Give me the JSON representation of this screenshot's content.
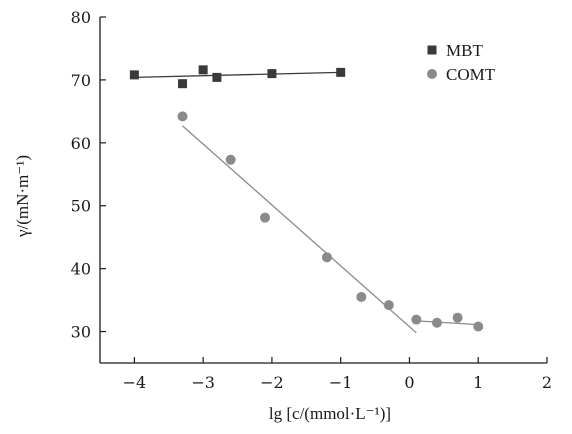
{
  "chart_data": {
    "type": "scatter",
    "xlabel": "lg [c/(mmol·L⁻¹)]",
    "ylabel": "γ/(mN·m⁻¹)",
    "xlim": [
      -4.5,
      2
    ],
    "ylim": [
      25,
      80
    ],
    "x_ticks": [
      -4,
      -3,
      -2,
      -1,
      0,
      1,
      2
    ],
    "x_tick_labels": [
      "−4",
      "−3",
      "−2",
      "−1",
      "0",
      "1",
      "2"
    ],
    "y_ticks": [
      30,
      40,
      50,
      60,
      70,
      80
    ],
    "y_tick_labels": [
      "30",
      "40",
      "50",
      "60",
      "70",
      "80"
    ],
    "grid": false,
    "legend_position": "top-right",
    "series": [
      {
        "name": "MBT",
        "marker": "square",
        "color": "#3a3a3a",
        "points": [
          [
            -4,
            70.8
          ],
          [
            -3.3,
            69.4
          ],
          [
            -3,
            71.6
          ],
          [
            -2.8,
            70.4
          ],
          [
            -2,
            71.0
          ],
          [
            -1,
            71.2
          ]
        ],
        "fit_lines": [
          {
            "from": [
              -4,
              70.4
            ],
            "to": [
              -1,
              71.2
            ]
          }
        ]
      },
      {
        "name": "COMT",
        "marker": "circle",
        "color": "#8a8a8a",
        "points": [
          [
            -3.3,
            64.2
          ],
          [
            -2.6,
            57.3
          ],
          [
            -2.1,
            48.1
          ],
          [
            -1.2,
            41.8
          ],
          [
            -0.7,
            35.5
          ],
          [
            -0.3,
            34.2
          ],
          [
            0.1,
            31.9
          ],
          [
            0.4,
            31.4
          ],
          [
            0.7,
            32.2
          ],
          [
            1,
            30.8
          ]
        ],
        "fit_lines": [
          {
            "from": [
              -3.3,
              62.7
            ],
            "to": [
              0.1,
              29.8
            ]
          },
          {
            "from": [
              0.1,
              31.7
            ],
            "to": [
              1,
              31.1
            ]
          }
        ]
      }
    ]
  }
}
